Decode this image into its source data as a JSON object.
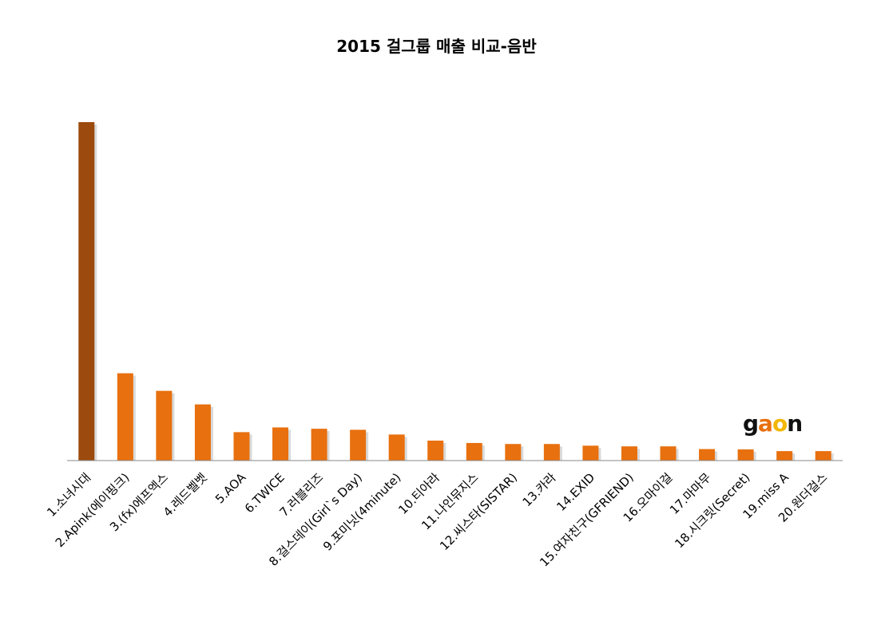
{
  "chart_data": {
    "type": "bar",
    "title": "2015 걸그룹 매출 비교-음반",
    "categories": [
      "1.소녀시대",
      "2.Apink(에이핑크)",
      "3.(fx)에프엑스",
      "4.레드벨벳",
      "5.AOA",
      "6.TWICE",
      "7.러블리즈",
      "8.걸스데이(Girl`s Day)",
      "9.포미닛(4minute)",
      "10.티아라",
      "11.나인뮤지스",
      "12.씨스타(SISTAR)",
      "13.카라",
      "14.EXID",
      "15.여자친구(GFRIEND)",
      "16.오마이걸",
      "17.마마무",
      "18.시크릿(Secret)",
      "19.miss A",
      "20.원더걸스"
    ],
    "values": [
      100,
      25.8,
      20.6,
      16.6,
      8.4,
      9.8,
      9.4,
      9.1,
      7.7,
      5.9,
      5.2,
      4.9,
      4.9,
      4.4,
      4.2,
      4.2,
      3.4,
      3.3,
      2.8,
      2.8
    ],
    "ylim": [
      0,
      100
    ],
    "xlabel": "",
    "ylabel": "",
    "grid": false,
    "colors": {
      "highlight": "#9c4a0e",
      "bar": "#e8700f",
      "axis": "#888888"
    }
  },
  "logo": {
    "letters": [
      "g",
      "a",
      "o",
      "n"
    ],
    "colors": [
      "#111111",
      "#e8700f",
      "#f2b705",
      "#111111"
    ]
  }
}
